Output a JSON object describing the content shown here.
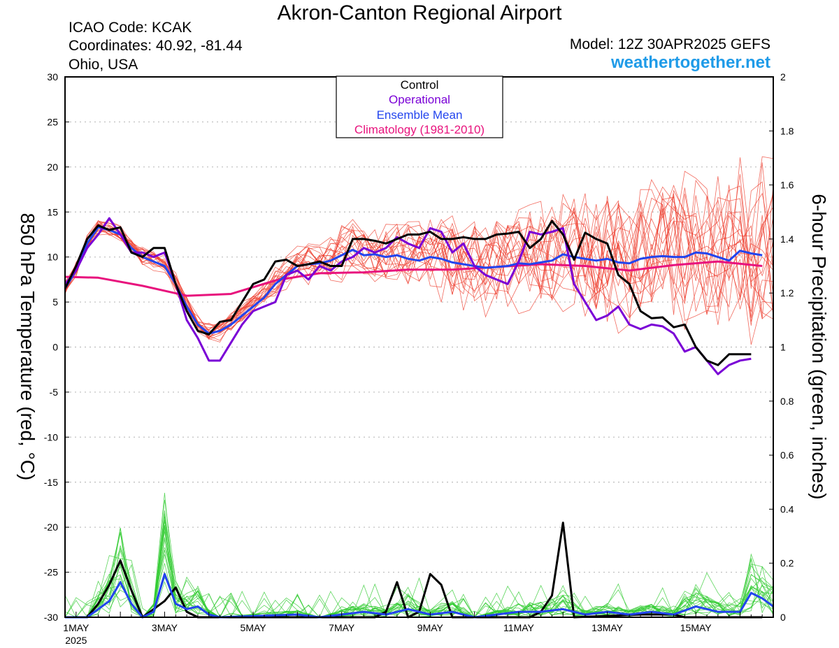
{
  "header": {
    "title": "Akron-Canton Regional Airport",
    "icao": "ICAO Code: KCAK",
    "coordinates": "Coordinates: 40.92, -81.44",
    "location": "Ohio, USA",
    "model": "Model: 12Z 30APR2025 GEFS",
    "brand": "weathertogether.net"
  },
  "colors": {
    "control": "#000000",
    "operational": "#7a00d6",
    "ensemble_mean": "#2244ee",
    "climatology": "#e8137d",
    "ensemble_temp": "#ee3a2a",
    "ensemble_precip": "#33cc33"
  },
  "chart_data": {
    "type": "line",
    "xlabel": "",
    "ylabel_left": "850 hPa Temperature (red, °C)",
    "ylabel_right": "6-hour Precipitation (green, inches)",
    "ylim_left": [
      -30,
      30
    ],
    "ylim_right": [
      0,
      2
    ],
    "yticks_left": [
      30,
      25,
      20,
      15,
      10,
      5,
      0,
      -5,
      -10,
      -15,
      -20,
      -25,
      -30
    ],
    "yticks_right": [
      "2",
      "1.8",
      "1.6",
      "1.4",
      "1.2",
      "1",
      "0.8",
      "0.6",
      "0.4",
      "0.2",
      "0"
    ],
    "x_ticks": [
      {
        "day": 1,
        "label": "1MAY",
        "sub": "2025"
      },
      {
        "day": 3,
        "label": "3MAY",
        "sub": ""
      },
      {
        "day": 5,
        "label": "5MAY",
        "sub": ""
      },
      {
        "day": 7,
        "label": "7MAY",
        "sub": ""
      },
      {
        "day": 9,
        "label": "9MAY",
        "sub": ""
      },
      {
        "day": 11,
        "label": "11MAY",
        "sub": ""
      },
      {
        "day": 13,
        "label": "13MAY",
        "sub": ""
      },
      {
        "day": 15,
        "label": "15MAY",
        "sub": ""
      }
    ],
    "x_range_days": [
      0.75,
      16.75
    ],
    "grid": true,
    "legend_position": "top-center",
    "legend": [
      "Control",
      "Operational",
      "Ensemble Mean",
      "Climatology (1981-2010)"
    ],
    "temperature_series": [
      {
        "name": "Control",
        "points": [
          [
            0.75,
            6.5
          ],
          [
            1.0,
            9
          ],
          [
            1.25,
            12
          ],
          [
            1.5,
            13.5
          ],
          [
            1.75,
            13
          ],
          [
            2.0,
            13.3
          ],
          [
            2.25,
            10.5
          ],
          [
            2.5,
            10
          ],
          [
            2.75,
            11
          ],
          [
            3.0,
            11
          ],
          [
            3.25,
            7
          ],
          [
            3.5,
            4
          ],
          [
            3.75,
            1.8
          ],
          [
            4.0,
            1.4
          ],
          [
            4.25,
            2.8
          ],
          [
            4.5,
            3
          ],
          [
            4.75,
            5
          ],
          [
            5.0,
            7
          ],
          [
            5.25,
            7.5
          ],
          [
            5.5,
            9.5
          ],
          [
            5.75,
            9.7
          ],
          [
            6.0,
            9
          ],
          [
            6.25,
            9.2
          ],
          [
            6.5,
            9.5
          ],
          [
            6.75,
            9
          ],
          [
            7.0,
            9
          ],
          [
            7.25,
            12
          ],
          [
            7.5,
            12
          ],
          [
            7.75,
            11.8
          ],
          [
            8.0,
            11.5
          ],
          [
            8.25,
            12
          ],
          [
            8.5,
            12.5
          ],
          [
            8.75,
            12.5
          ],
          [
            9.0,
            12.8
          ],
          [
            9.25,
            12
          ],
          [
            9.5,
            12
          ],
          [
            9.75,
            12.2
          ],
          [
            10.0,
            12
          ],
          [
            10.25,
            12
          ],
          [
            10.5,
            12.5
          ],
          [
            10.75,
            12.6
          ],
          [
            11.0,
            12.8
          ],
          [
            11.25,
            11
          ],
          [
            11.5,
            12
          ],
          [
            11.75,
            14
          ],
          [
            12.0,
            12.5
          ],
          [
            12.25,
            9.7
          ],
          [
            12.5,
            12.7
          ],
          [
            12.75,
            12
          ],
          [
            13.0,
            11.5
          ],
          [
            13.25,
            8
          ],
          [
            13.5,
            7
          ],
          [
            13.75,
            4
          ],
          [
            14.0,
            3.2
          ],
          [
            14.25,
            3.3
          ],
          [
            14.5,
            2.2
          ],
          [
            14.75,
            2.5
          ],
          [
            15.0,
            0
          ],
          [
            15.25,
            -1.5
          ],
          [
            15.5,
            -2
          ],
          [
            15.75,
            -0.8
          ],
          [
            16.0,
            -0.8
          ],
          [
            16.25,
            -0.8
          ]
        ]
      },
      {
        "name": "Operational",
        "points": [
          [
            0.75,
            7
          ],
          [
            1.0,
            8.5
          ],
          [
            1.25,
            11
          ],
          [
            1.5,
            12.5
          ],
          [
            1.75,
            14.3
          ],
          [
            2.0,
            12.5
          ],
          [
            2.25,
            10.5
          ],
          [
            2.5,
            10.5
          ],
          [
            2.75,
            10
          ],
          [
            3.0,
            10.5
          ],
          [
            3.25,
            7
          ],
          [
            3.5,
            3
          ],
          [
            3.75,
            1
          ],
          [
            4.0,
            -1.5
          ],
          [
            4.25,
            -1.5
          ],
          [
            4.5,
            0.5
          ],
          [
            4.75,
            2.5
          ],
          [
            5.0,
            4
          ],
          [
            5.25,
            4.5
          ],
          [
            5.5,
            5
          ],
          [
            5.75,
            8
          ],
          [
            6.0,
            8.5
          ],
          [
            6.25,
            7.5
          ],
          [
            6.5,
            9
          ],
          [
            6.75,
            8.5
          ],
          [
            7.0,
            9.5
          ],
          [
            7.25,
            10
          ],
          [
            7.5,
            11
          ],
          [
            7.75,
            10.5
          ],
          [
            8.0,
            11
          ],
          [
            8.25,
            12.2
          ],
          [
            8.5,
            11.5
          ],
          [
            8.75,
            11
          ],
          [
            9.0,
            13.2
          ],
          [
            9.25,
            12.8
          ],
          [
            9.5,
            10.5
          ],
          [
            9.75,
            11.5
          ],
          [
            10.0,
            9
          ],
          [
            10.25,
            8
          ],
          [
            10.5,
            7.5
          ],
          [
            10.75,
            7
          ],
          [
            11.0,
            9.5
          ],
          [
            11.25,
            12.8
          ],
          [
            11.5,
            12.5
          ],
          [
            11.75,
            12.8
          ],
          [
            12.0,
            13.2
          ],
          [
            12.25,
            7
          ],
          [
            12.5,
            5
          ],
          [
            12.75,
            3
          ],
          [
            13.0,
            3.5
          ],
          [
            13.25,
            4.5
          ],
          [
            13.5,
            2.5
          ],
          [
            13.75,
            2
          ],
          [
            14.0,
            2.5
          ],
          [
            14.25,
            2.3
          ],
          [
            14.5,
            1.5
          ],
          [
            14.75,
            -0.5
          ],
          [
            15.0,
            0
          ],
          [
            15.25,
            -1.5
          ],
          [
            15.5,
            -3
          ],
          [
            15.75,
            -2
          ],
          [
            16.0,
            -1.5
          ],
          [
            16.25,
            -1.3
          ]
        ]
      },
      {
        "name": "Ensemble Mean",
        "points": [
          [
            0.75,
            6.5
          ],
          [
            1.0,
            8.5
          ],
          [
            1.25,
            11.5
          ],
          [
            1.5,
            13.3
          ],
          [
            1.75,
            13
          ],
          [
            2.0,
            12.5
          ],
          [
            2.25,
            11
          ],
          [
            2.5,
            10
          ],
          [
            2.75,
            9.5
          ],
          [
            3.0,
            9
          ],
          [
            3.25,
            7
          ],
          [
            3.5,
            4.5
          ],
          [
            3.75,
            2.5
          ],
          [
            4.0,
            1.5
          ],
          [
            4.25,
            1.8
          ],
          [
            4.5,
            2.5
          ],
          [
            4.75,
            3.5
          ],
          [
            5.0,
            4.5
          ],
          [
            5.25,
            5.5
          ],
          [
            5.5,
            7
          ],
          [
            5.75,
            8
          ],
          [
            6.0,
            9
          ],
          [
            6.25,
            9.2
          ],
          [
            6.5,
            9.3
          ],
          [
            6.75,
            9.6
          ],
          [
            7.0,
            10.2
          ],
          [
            7.25,
            10.8
          ],
          [
            7.5,
            10.2
          ],
          [
            7.75,
            10.3
          ],
          [
            8.0,
            10
          ],
          [
            8.25,
            10.2
          ],
          [
            8.5,
            9.8
          ],
          [
            8.75,
            9.6
          ],
          [
            9.0,
            10
          ],
          [
            9.25,
            9.8
          ],
          [
            9.5,
            9.4
          ],
          [
            9.75,
            9.2
          ],
          [
            10.0,
            9
          ],
          [
            10.25,
            8.8
          ],
          [
            10.5,
            8.9
          ],
          [
            10.75,
            9
          ],
          [
            11.0,
            9.3
          ],
          [
            11.25,
            9.2
          ],
          [
            11.5,
            9.4
          ],
          [
            11.75,
            9.6
          ],
          [
            12.0,
            10.3
          ],
          [
            12.25,
            10
          ],
          [
            12.5,
            9.8
          ],
          [
            12.75,
            9.6
          ],
          [
            13.0,
            9.8
          ],
          [
            13.25,
            9.4
          ],
          [
            13.5,
            9.3
          ],
          [
            13.75,
            9.8
          ],
          [
            14.0,
            10
          ],
          [
            14.25,
            10.1
          ],
          [
            14.5,
            10
          ],
          [
            14.75,
            10
          ],
          [
            15.0,
            10.5
          ],
          [
            15.25,
            10.4
          ],
          [
            15.5,
            10
          ],
          [
            15.75,
            9.6
          ],
          [
            16.0,
            10.7
          ],
          [
            16.25,
            10.4
          ],
          [
            16.5,
            10.2
          ]
        ]
      },
      {
        "name": "Climatology (1981-2010)",
        "points": [
          [
            0.75,
            7.8
          ],
          [
            1.5,
            7.7
          ],
          [
            2.5,
            6.8
          ],
          [
            3.5,
            5.7
          ],
          [
            4.5,
            5.9
          ],
          [
            5.5,
            7.4
          ],
          [
            6.5,
            8.2
          ],
          [
            7.5,
            8.3
          ],
          [
            8.5,
            8.6
          ],
          [
            9.5,
            8.6
          ],
          [
            10.5,
            8.9
          ],
          [
            11.5,
            9.2
          ],
          [
            12.5,
            9
          ],
          [
            13.5,
            8.5
          ],
          [
            14.5,
            9.1
          ],
          [
            15.5,
            9.5
          ],
          [
            16.5,
            9
          ]
        ]
      }
    ],
    "ensemble_temperature_traces": 20,
    "precip_series": [
      {
        "name": "Control",
        "points": [
          [
            0.75,
            0
          ],
          [
            1.25,
            0
          ],
          [
            1.5,
            0.05
          ],
          [
            1.75,
            0.12
          ],
          [
            2.0,
            0.21
          ],
          [
            2.25,
            0.1
          ],
          [
            2.5,
            0
          ],
          [
            2.75,
            0.03
          ],
          [
            3.0,
            0.06
          ],
          [
            3.25,
            0.11
          ],
          [
            3.5,
            0.02
          ],
          [
            3.75,
            0
          ],
          [
            7.75,
            0
          ],
          [
            8.0,
            0.02
          ],
          [
            8.25,
            0.13
          ],
          [
            8.5,
            0
          ],
          [
            8.75,
            0.02
          ],
          [
            9.0,
            0.16
          ],
          [
            9.25,
            0.12
          ],
          [
            9.5,
            0
          ],
          [
            11.25,
            0
          ],
          [
            11.5,
            0.02
          ],
          [
            11.75,
            0.08
          ],
          [
            12.0,
            0.35
          ],
          [
            12.25,
            0
          ],
          [
            13.75,
            0.01
          ],
          [
            14.5,
            0.01
          ],
          [
            14.75,
            0
          ],
          [
            16.5,
            0
          ]
        ]
      },
      {
        "name": "Ensemble Mean",
        "points": [
          [
            0.75,
            0
          ],
          [
            1.25,
            0
          ],
          [
            1.5,
            0.03
          ],
          [
            1.75,
            0.06
          ],
          [
            2.0,
            0.13
          ],
          [
            2.25,
            0.05
          ],
          [
            2.5,
            0
          ],
          [
            2.75,
            0.02
          ],
          [
            3.0,
            0.16
          ],
          [
            3.25,
            0.05
          ],
          [
            3.5,
            0.03
          ],
          [
            3.75,
            0.04
          ],
          [
            4.0,
            0.01
          ],
          [
            4.25,
            0
          ],
          [
            6.0,
            0.01
          ],
          [
            6.5,
            0
          ],
          [
            7.5,
            0.02
          ],
          [
            8.0,
            0.01
          ],
          [
            8.5,
            0.03
          ],
          [
            9.0,
            0.01
          ],
          [
            9.5,
            0.02
          ],
          [
            10.0,
            0
          ],
          [
            11.0,
            0.02
          ],
          [
            11.5,
            0.02
          ],
          [
            12.0,
            0.03
          ],
          [
            12.5,
            0.01
          ],
          [
            13.0,
            0.02
          ],
          [
            13.5,
            0.01
          ],
          [
            14.0,
            0.02
          ],
          [
            14.5,
            0.01
          ],
          [
            15.0,
            0.04
          ],
          [
            15.5,
            0.02
          ],
          [
            16.0,
            0.02
          ],
          [
            16.25,
            0.09
          ],
          [
            16.5,
            0.07
          ],
          [
            16.75,
            0.04
          ]
        ]
      }
    ],
    "ensemble_precip_traces": 20
  }
}
